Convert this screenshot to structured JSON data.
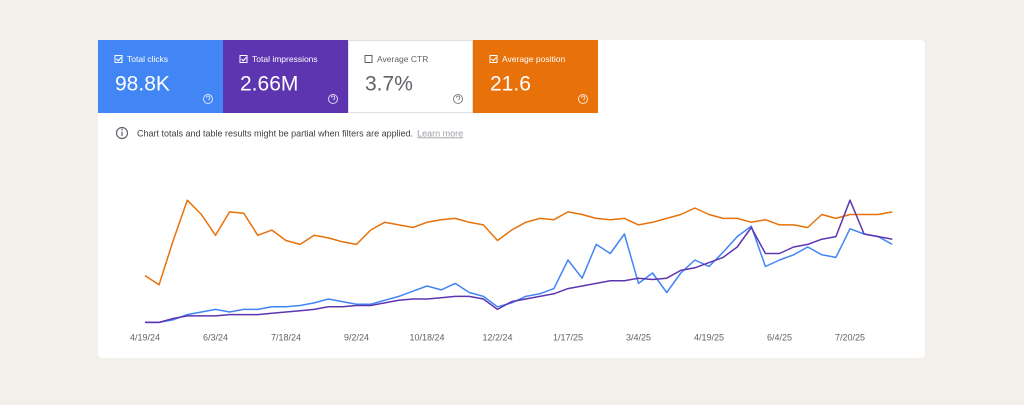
{
  "cards": [
    {
      "label": "Total clicks",
      "value": "98.8K",
      "color": "#4285f4",
      "text_color": "#ffffff",
      "checked": true
    },
    {
      "label": "Total impressions",
      "value": "2.66M",
      "color": "#5e35b1",
      "text_color": "#ffffff",
      "checked": true
    },
    {
      "label": "Average CTR",
      "value": "3.7%",
      "color": "#ffffff",
      "text_color": "#5f6368",
      "checked": false
    },
    {
      "label": "Average position",
      "value": "21.6",
      "color": "#e8710a",
      "text_color": "#ffffff",
      "checked": true
    }
  ],
  "notice": {
    "text": "Chart totals and table results might be partial when filters are applied.",
    "link": "Learn more"
  },
  "chart_data": {
    "type": "line",
    "categories": [
      "4/19/24",
      null,
      null,
      null,
      null,
      "6/3/24",
      null,
      null,
      null,
      null,
      "7/18/24",
      null,
      null,
      null,
      null,
      "9/2/24",
      null,
      null,
      null,
      null,
      "10/18/24",
      null,
      null,
      null,
      null,
      "12/2/24",
      null,
      null,
      null,
      null,
      "1/17/25",
      null,
      null,
      null,
      null,
      "3/4/25",
      null,
      null,
      null,
      null,
      "4/19/25",
      null,
      null,
      null,
      null,
      "6/4/25",
      null,
      null,
      null,
      null,
      "7/20/25",
      null,
      null,
      null
    ],
    "ylim": [
      0,
      100
    ],
    "series": [
      {
        "name": "Average position",
        "color": "#e8710a",
        "values": [
          38,
          31,
          65,
          96,
          85,
          69,
          87,
          86,
          69,
          73,
          65,
          62,
          69,
          67,
          64,
          62,
          73,
          79,
          77,
          75,
          79,
          81,
          82,
          79,
          77,
          65,
          73,
          79,
          82,
          81,
          87,
          85,
          82,
          81,
          82,
          77,
          79,
          82,
          85,
          90,
          85,
          82,
          82,
          79,
          81,
          77,
          77,
          75,
          85,
          82,
          85,
          85,
          85,
          87
        ]
      },
      {
        "name": "Total clicks",
        "color": "#4285f4",
        "values": [
          2,
          2,
          4,
          8,
          10,
          12,
          10,
          12,
          12,
          14,
          14,
          15,
          17,
          20,
          18,
          16,
          16,
          19,
          22,
          26,
          30,
          27,
          32,
          25,
          22,
          14,
          17,
          22,
          24,
          28,
          50,
          36,
          62,
          55,
          70,
          32,
          40,
          25,
          40,
          50,
          45,
          56,
          68,
          76,
          45,
          50,
          54,
          60,
          54,
          52,
          74,
          70,
          68,
          62
        ]
      },
      {
        "name": "Total impressions",
        "color": "#5e35b1",
        "values": [
          2,
          2,
          5,
          7,
          7,
          7,
          8,
          8,
          8,
          9,
          10,
          11,
          12,
          14,
          14,
          15,
          15,
          17,
          19,
          20,
          20,
          21,
          22,
          22,
          20,
          12,
          18,
          20,
          22,
          24,
          28,
          30,
          32,
          34,
          34,
          36,
          35,
          36,
          42,
          44,
          48,
          52,
          60,
          75,
          55,
          55,
          60,
          62,
          66,
          68,
          96,
          70,
          68,
          66
        ]
      }
    ]
  }
}
